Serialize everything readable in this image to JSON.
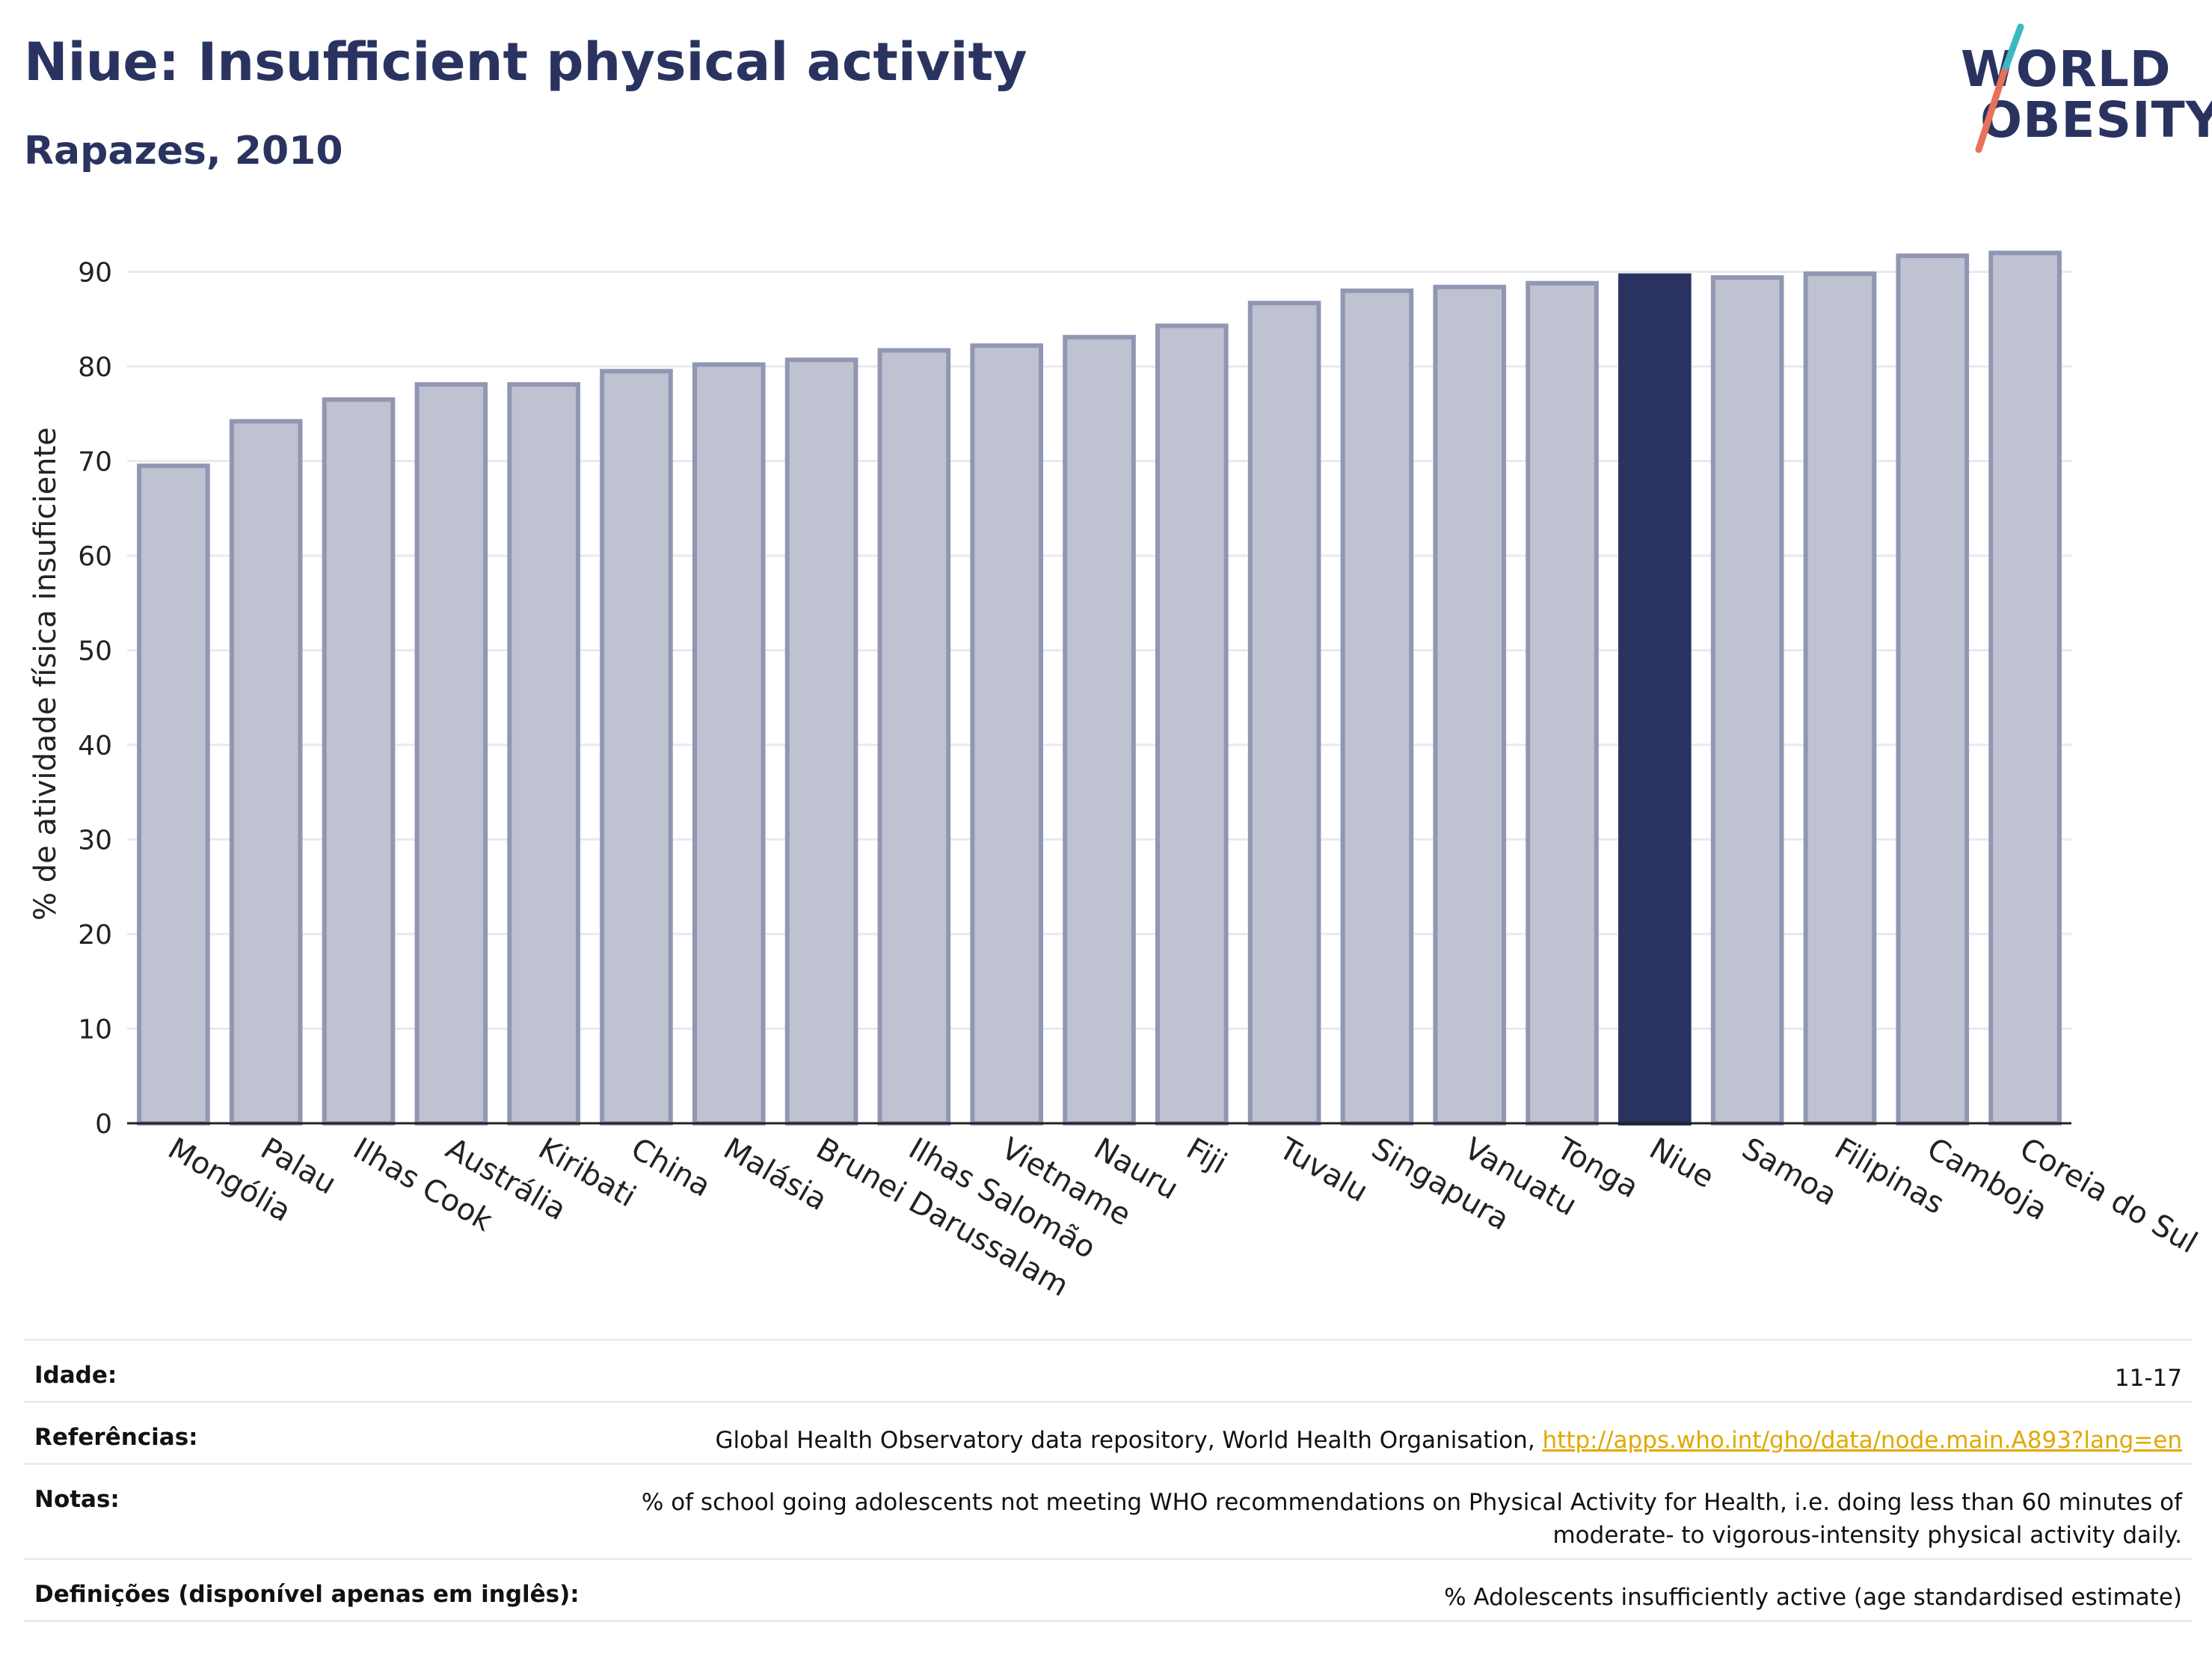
{
  "header": {
    "title": "Niue: Insufficient physical activity",
    "subtitle": "Rapazes, 2010"
  },
  "logo": {
    "line1": "WORLD",
    "line2": "OBESITY"
  },
  "colors": {
    "highlight": "#2a3360",
    "bar": "#bfc2d0",
    "bar_edge": "#9196b3",
    "grid": "#e8eaef",
    "logo_teal": "#3bb8c0",
    "logo_coral": "#e8715a",
    "link": "#e0a800"
  },
  "chart_data": {
    "type": "bar",
    "ylabel": "% de atividade física insuficiente",
    "ylim": [
      0,
      95
    ],
    "yticks": [
      0,
      10,
      20,
      30,
      40,
      50,
      60,
      70,
      80,
      90
    ],
    "grid": true,
    "highlight": "Niue",
    "categories": [
      "Mongólia",
      "Palau",
      "Ilhas Cook",
      "Austrália",
      "Kiribati",
      "China",
      "Malásia",
      "Brunei Darussalam",
      "Ilhas Salomão",
      "Vietname",
      "Nauru",
      "Fiji",
      "Tuvalu",
      "Singapura",
      "Vanuatu",
      "Tonga",
      "Niue",
      "Samoa",
      "Filipinas",
      "Camboja",
      "Coreia do Sul"
    ],
    "values": [
      69.5,
      74.2,
      76.5,
      78.1,
      78.1,
      79.5,
      80.2,
      80.7,
      81.7,
      82.2,
      83.1,
      84.3,
      86.7,
      88.0,
      88.4,
      88.8,
      89.6,
      89.4,
      89.8,
      91.7,
      92.0
    ]
  },
  "footer": {
    "age_label": "Idade:",
    "age_value": "11-17",
    "refs_label": "Referências:",
    "refs_text": "Global Health Observatory data repository, World Health Organisation, ",
    "refs_link": "http://apps.who.int/gho/data/node.main.A893?lang=en",
    "notes_label": "Notas:",
    "notes_line1": "% of school going adolescents not meeting WHO recommendations on Physical Activity for Health, i.e. doing less than 60 minutes of",
    "notes_line2": "moderate- to vigorous-intensity physical activity daily.",
    "defs_label": "Definições (disponível apenas em inglês):",
    "defs_value": "% Adolescents insufficiently active (age standardised estimate)"
  }
}
